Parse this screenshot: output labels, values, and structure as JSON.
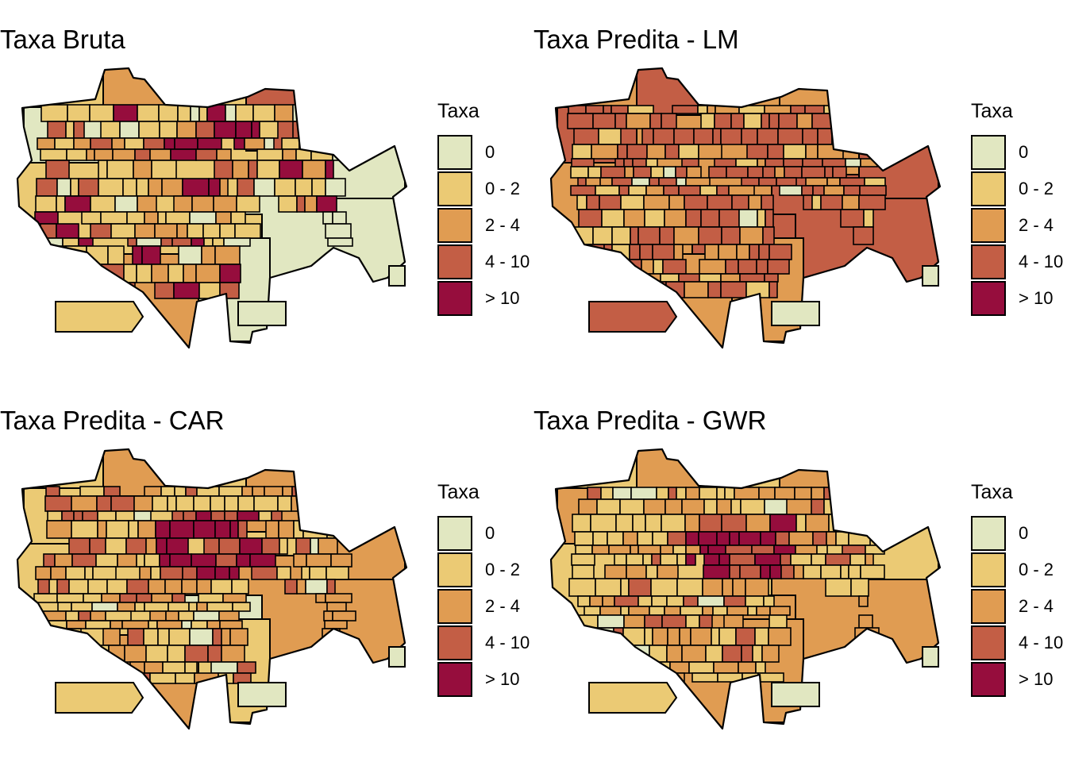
{
  "colors": {
    "zero": "#e1e7c1",
    "c0_2": "#ebca74",
    "c2_4": "#e09c52",
    "c4_10": "#c35e45",
    "c10p": "#960d3d",
    "border": "#000000"
  },
  "legend": {
    "title": "Taxa",
    "items": [
      {
        "label": "0",
        "color": "#e1e7c1"
      },
      {
        "label": "0 - 2",
        "color": "#ebca74"
      },
      {
        "label": "2 - 4",
        "color": "#e09c52"
      },
      {
        "label": "4 - 10",
        "color": "#c35e45"
      },
      {
        "label": "> 10",
        "color": "#960d3d"
      }
    ]
  },
  "panels": [
    {
      "title": "Taxa Bruta",
      "pattern": "bruta"
    },
    {
      "title": "Taxa Predita - LM",
      "pattern": "lm"
    },
    {
      "title": "Taxa Predita - CAR",
      "pattern": "car"
    },
    {
      "title": "Taxa Predita - GWR",
      "pattern": "gwr"
    }
  ]
}
